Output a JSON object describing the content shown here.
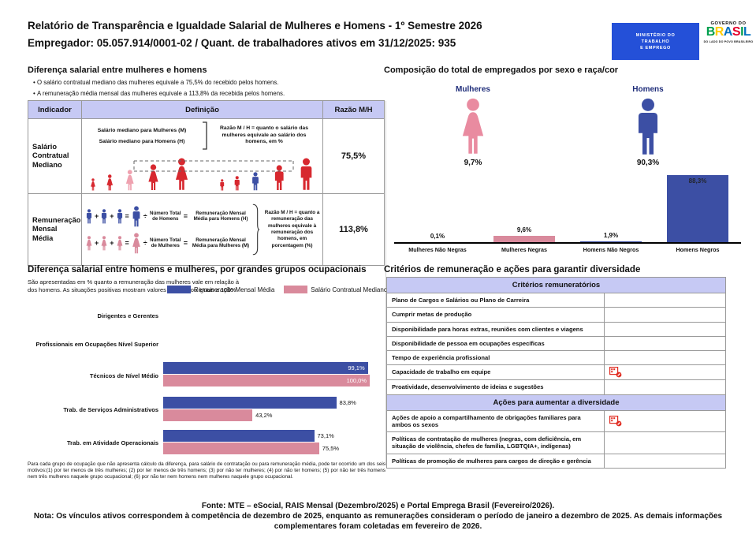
{
  "colors": {
    "blue": "#3C4FA4",
    "pink": "#D98A9C",
    "light_pink": "#F6DBE1",
    "red": "#D7282F",
    "median_pink": "#EFA2B0",
    "woman_pink": "#E98BA0",
    "lavender": "#C6C9F4",
    "navy_label": "#1F2D7A",
    "mte_blue": "#2450D8",
    "icon_red": "#E02B20"
  },
  "header": {
    "title": "Relatório de Transparência e Igualdade Salarial de Mulheres e Homens - 1º Semestre 2026",
    "subtitle": "Empregador: 05.057.914/0001-02 / Quant. de trabalhadores ativos em 31/12/2025: 935",
    "mte_logo": {
      "line1": "MINISTÉRIO DO",
      "line2": "TRABALHO",
      "line3": "E EMPREGO"
    },
    "gov_logo": {
      "top": "GOVERNO DO",
      "brand": "BRASIL",
      "bottom": "DO LADO DO POVO BRASILEIRO",
      "letter_colors": [
        "#009F4D",
        "#FFCD00",
        "#0070C0",
        "#E4002B",
        "#009F4D",
        "#0070C0"
      ]
    }
  },
  "wage_gap": {
    "title": "Diferença salarial entre mulheres e homens",
    "bullets": [
      "O salário contratual mediano das mulheres equivale a 75,5% do recebido pelos homens.",
      "A remuneração média mensal das mulheres equivale a 113,8% da recebida pelos homens."
    ],
    "table_headers": [
      "Indicador",
      "Definição",
      "Razão M/H"
    ],
    "row1": {
      "indicator": "Salário Contratual Mediano",
      "line_women": "Salário mediano para Mulheres (M)",
      "line_men": "Salário mediano para Homens (H)",
      "note": "Razão M / H = quanto o salário das mulheres equivale ao salário dos homens, em %",
      "ratio": "75,5%"
    },
    "row2": {
      "indicator": "Remuneração Mensal Média",
      "men_divisor": "Número Total de Homens",
      "men_result": "Remuneração Mensal Média para Homens (H)",
      "women_divisor": "Número Total de Mulheres",
      "women_result": "Remuneração Mensal Média para Mulheres (M)",
      "note": "Razão M / H = quanto a remuneração das mulheres equivale à remuneração dos homens, em porcentagem (%)",
      "ratio": "113,8%",
      "operators": {
        "plus": "+",
        "equals": "=",
        "divide": "÷"
      }
    }
  },
  "composition": {
    "title": "Composição do total de empregados por sexo e raça/cor",
    "pictograms": [
      {
        "label": "Mulheres",
        "value": "9,7%"
      },
      {
        "label": "Homens",
        "value": "90,3%"
      }
    ],
    "chart_data": {
      "type": "bar",
      "categories": [
        "Mulheres Não Negras",
        "Mulheres Negras",
        "Homens Não Negros",
        "Homens Negros"
      ],
      "values": [
        0.1,
        9.6,
        1.9,
        88.3
      ],
      "labels": [
        "0,1%",
        "9,6%",
        "1,9%",
        "88,3%"
      ],
      "bar_colors": [
        "#F6DBE1",
        "#D98A9C",
        "#3C4FA4",
        "#3C4FA4"
      ],
      "ylim": [
        0,
        100
      ],
      "grid": false
    }
  },
  "occupational": {
    "title": "Diferença salarial entre homens e mulheres, por grandes grupos ocupacionais",
    "subtitle": "São apresentadas em % quanto a remuneração das mulheres vale em relação à dos homens. As situações positivas mostram valores maiores ou iguais a 100%",
    "chart_data": {
      "type": "bar-horizontal",
      "categories": [
        "Dirigentes e Gerentes",
        "Profissionais em Ocupações Nível Superior",
        "Técnicos de Nível Médio",
        "Trab. de Serviços Administrativos",
        "Trab. em Atividade Operacionais"
      ],
      "series": [
        {
          "name": "Remuneração Mensal Média",
          "color": "#3C4FA4",
          "values": [
            null,
            null,
            99.1,
            83.8,
            73.1
          ],
          "labels": [
            null,
            null,
            "99,1%",
            "83,8%",
            "73,1%"
          ]
        },
        {
          "name": "Salário Contratual Mediano",
          "color": "#D98A9C",
          "values": [
            null,
            null,
            100.0,
            43.2,
            75.5
          ],
          "labels": [
            null,
            null,
            "100,0%",
            "43,2%",
            "75,5%"
          ]
        }
      ],
      "xlim": [
        0,
        100
      ],
      "legend_position": "top"
    },
    "footnote": "Para cada grupo de ocupação que não apresenta cálculo da diferença, para salário de contratação ou para remuneração média, pode ter ocorrido um dos seis motivos:(1) por ter menos de três mulheres; (2) por ter menos de três homens; (3) por não ter mulheres; (4) por não ter homens; (5) por não ter três homens nem três mulheres naquele grupo ocupacional; (6) por não ter nem homens nem mulheres naquele grupo ocupacional."
  },
  "criteria": {
    "title": "Critérios de remuneração e ações para garantir diversidade",
    "tables": [
      {
        "header": "Critérios remuneratórios",
        "rows": [
          {
            "label": "Plano de Cargos e Salários ou Plano de Carreira",
            "icon": false
          },
          {
            "label": "Cumprir metas de produção",
            "icon": false
          },
          {
            "label": "Disponibilidade para horas extras, reuniões com clientes e viagens",
            "icon": false
          },
          {
            "label": "Disponibilidade de pessoa em ocupações específicas",
            "icon": false
          },
          {
            "label": "Tempo de experiência profissional",
            "icon": false
          },
          {
            "label": "Capacidade de trabalho em equipe",
            "icon": true
          },
          {
            "label": "Proatividade, desenvolvimento de ideias e sugestões",
            "icon": false
          }
        ]
      },
      {
        "header": "Ações para aumentar a diversidade",
        "rows": [
          {
            "label": "Ações de apoio a compartilhamento de obrigações familiares para ambos os sexos",
            "icon": true
          },
          {
            "label": "Políticas de contratação de mulheres (negras, com deficiência, em situação de violência, chefes de família, LGBTQIA+, indígenas)",
            "icon": false
          },
          {
            "label": "Políticas de promoção de mulheres para cargos de direção e gerência",
            "icon": false
          }
        ]
      }
    ]
  },
  "footer": {
    "fonte": "Fonte: MTE – eSocial, RAIS Mensal (Dezembro/2025) e Portal Emprega Brasil (Fevereiro/2026).",
    "nota": "Nota: Os vínculos ativos correspondem à competência de dezembro de 2025, enquanto as remunerações consideram o período de janeiro a dezembro de 2025. As demais informações complementares foram coletadas em fevereiro de 2026."
  }
}
